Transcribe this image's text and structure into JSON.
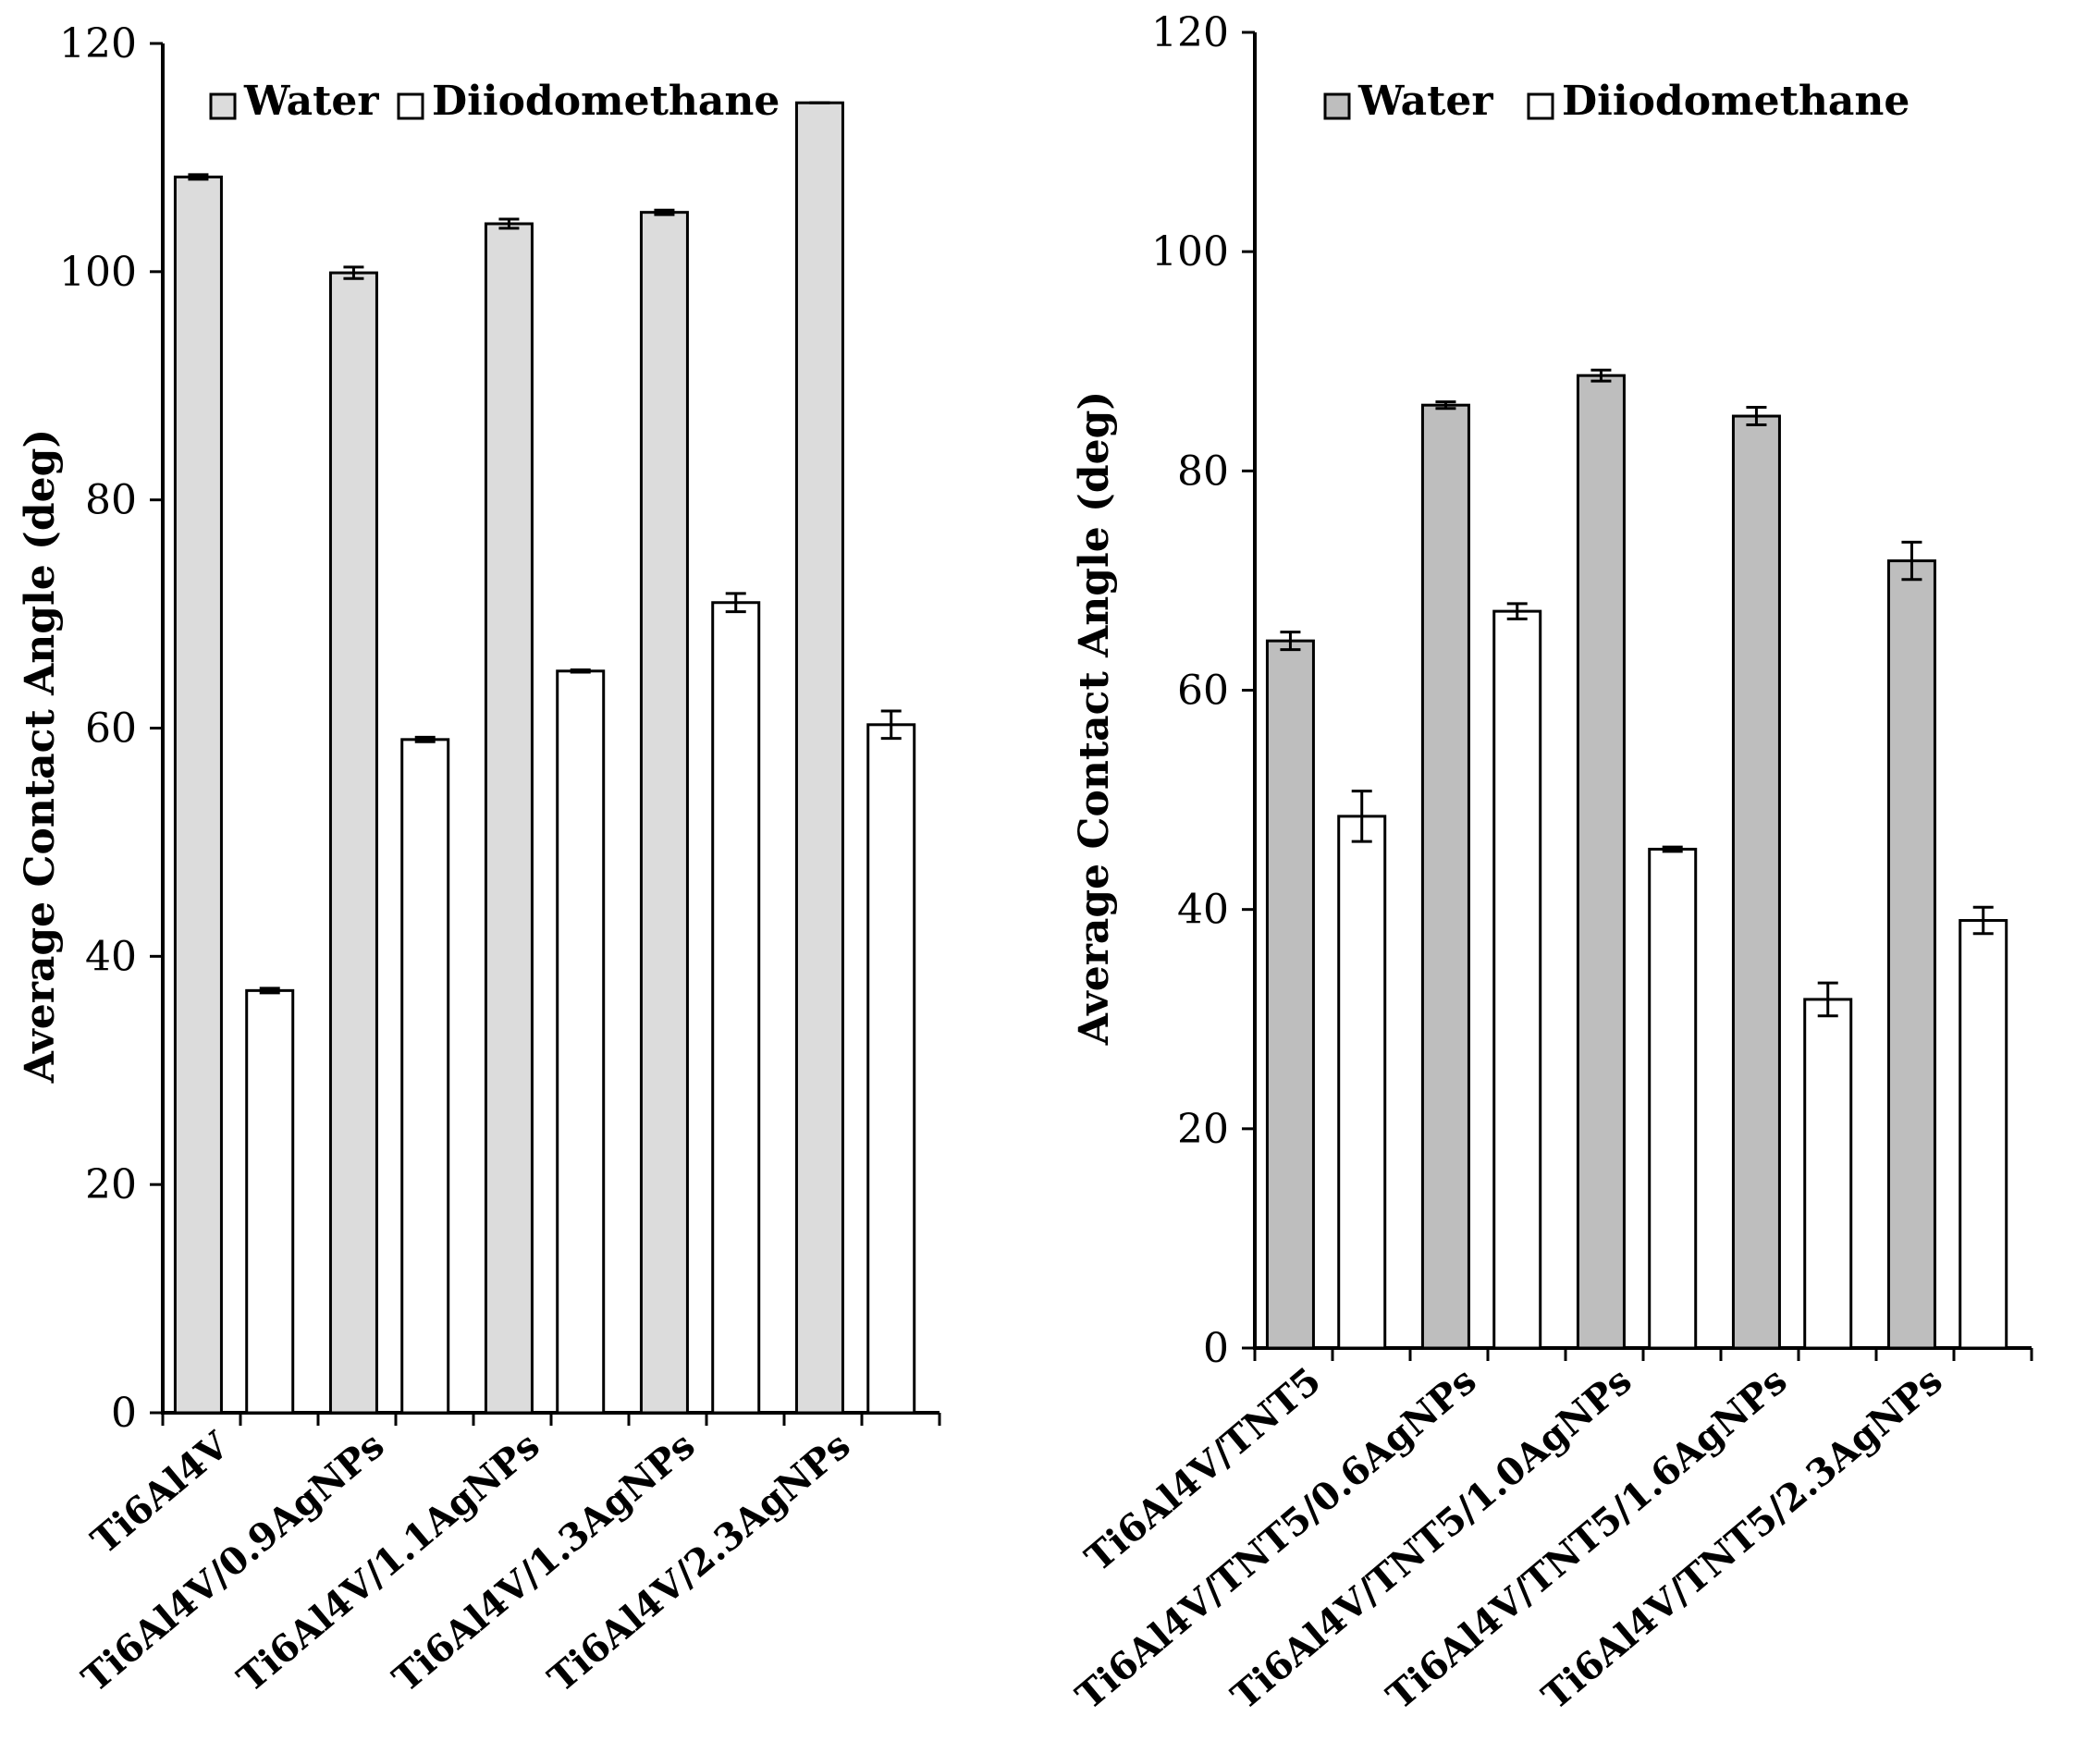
{
  "chart_data": [
    {
      "type": "bar",
      "title": "",
      "ylabel": "Average Contact Angle (deg)",
      "xlabel": "",
      "ylim": [
        0,
        120
      ],
      "yticks": [
        "0",
        "20",
        "40",
        "60",
        "80",
        "100",
        "120"
      ],
      "categories": [
        "Ti6Al4V",
        "Ti6Al4V/0.9AgNPs",
        "Ti6Al4V/1.1AgNPs",
        "Ti6Al4V/1.3AgNPs",
        "Ti6Al4V/2.3AgNPs"
      ],
      "legend": [
        "Water",
        "Diiodomethane"
      ],
      "legend_position": "top",
      "series": [
        {
          "name": "Water",
          "color": "#dcdcdc",
          "values": [
            108.3,
            99.9,
            104.2,
            105.2,
            114.8
          ],
          "errors": [
            0.2,
            0.5,
            0.4,
            0.2,
            0.0
          ]
        },
        {
          "name": "Diiodomethane",
          "color": "#ffffff",
          "values": [
            37.0,
            59.0,
            65.0,
            71.0,
            60.3
          ],
          "errors": [
            0.2,
            0.2,
            0.1,
            0.8,
            1.2
          ]
        }
      ]
    },
    {
      "type": "bar",
      "title": "",
      "ylabel": "Average Contact Angle (deg)",
      "xlabel": "",
      "ylim": [
        0,
        120
      ],
      "yticks": [
        "0",
        "20",
        "40",
        "60",
        "80",
        "100",
        "120"
      ],
      "categories": [
        "Ti6Al4V/TNT5",
        "Ti6Al4V/TNT5/0.6AgNPs",
        "Ti6Al4V/TNT5/1.0AgNPs",
        "Ti6Al4V/TNT5/1.6AgNPs",
        "Ti6Al4V/TNT5/2.3AgNPs"
      ],
      "legend": [
        "Water",
        "Diiodomethane"
      ],
      "legend_position": "top",
      "series": [
        {
          "name": "Water",
          "color": "#bebebe",
          "values": [
            64.5,
            86.0,
            88.7,
            85.0,
            71.8
          ],
          "errors": [
            0.8,
            0.3,
            0.5,
            0.8,
            1.7
          ]
        },
        {
          "name": "Diiodomethane",
          "color": "#ffffff",
          "values": [
            48.5,
            67.2,
            45.5,
            31.8,
            39.0
          ],
          "errors": [
            2.3,
            0.7,
            0.2,
            1.5,
            1.2
          ]
        }
      ]
    }
  ]
}
